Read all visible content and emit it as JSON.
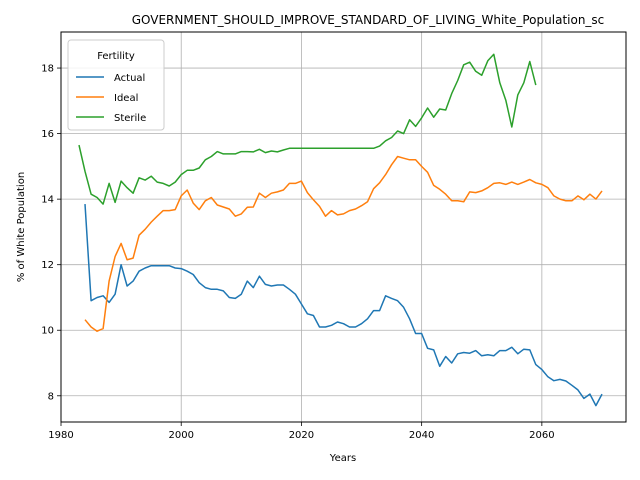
{
  "chart_data": {
    "type": "line",
    "title": "GOVERNMENT_SHOULD_IMPROVE_STANDARD_OF_LIVING_White_Population_sc",
    "xlabel": "Years",
    "ylabel": "% of White Population",
    "xlim": [
      1980,
      2074
    ],
    "ylim": [
      7.2,
      19.1
    ],
    "xticks": [
      1980,
      2000,
      2020,
      2040,
      2060
    ],
    "yticks": [
      8,
      10,
      12,
      14,
      16,
      18
    ],
    "grid": true,
    "legend": {
      "title": "Fertility",
      "placement": "top-left"
    },
    "series": [
      {
        "name": "Actual",
        "color": "#1f77b4",
        "points": [
          [
            1984,
            13.85
          ],
          [
            1985,
            10.9
          ],
          [
            1986,
            11.0
          ],
          [
            1987,
            11.05
          ],
          [
            1988,
            10.85
          ],
          [
            1989,
            11.1
          ],
          [
            1990,
            12.0
          ],
          [
            1991,
            11.35
          ],
          [
            1992,
            11.5
          ],
          [
            1993,
            11.8
          ],
          [
            1994,
            11.9
          ],
          [
            1995,
            11.97
          ],
          [
            1996,
            11.97
          ],
          [
            1997,
            11.97
          ],
          [
            1998,
            11.97
          ],
          [
            1999,
            11.9
          ],
          [
            2000,
            11.88
          ],
          [
            2001,
            11.8
          ],
          [
            2002,
            11.7
          ],
          [
            2003,
            11.45
          ],
          [
            2004,
            11.3
          ],
          [
            2005,
            11.25
          ],
          [
            2006,
            11.25
          ],
          [
            2007,
            11.2
          ],
          [
            2008,
            11.0
          ],
          [
            2009,
            10.97
          ],
          [
            2010,
            11.1
          ],
          [
            2011,
            11.5
          ],
          [
            2012,
            11.3
          ],
          [
            2013,
            11.65
          ],
          [
            2014,
            11.4
          ],
          [
            2015,
            11.35
          ],
          [
            2016,
            11.38
          ],
          [
            2017,
            11.38
          ],
          [
            2018,
            11.25
          ],
          [
            2019,
            11.1
          ],
          [
            2020,
            10.8
          ],
          [
            2021,
            10.5
          ],
          [
            2022,
            10.45
          ],
          [
            2023,
            10.1
          ],
          [
            2024,
            10.1
          ],
          [
            2025,
            10.15
          ],
          [
            2026,
            10.25
          ],
          [
            2027,
            10.2
          ],
          [
            2028,
            10.1
          ],
          [
            2029,
            10.1
          ],
          [
            2030,
            10.2
          ],
          [
            2031,
            10.35
          ],
          [
            2032,
            10.6
          ],
          [
            2033,
            10.6
          ],
          [
            2034,
            11.05
          ],
          [
            2035,
            10.97
          ],
          [
            2036,
            10.9
          ],
          [
            2037,
            10.7
          ],
          [
            2038,
            10.35
          ],
          [
            2039,
            9.9
          ],
          [
            2040,
            9.9
          ],
          [
            2041,
            9.45
          ],
          [
            2042,
            9.4
          ],
          [
            2043,
            8.9
          ],
          [
            2044,
            9.2
          ],
          [
            2045,
            9.0
          ],
          [
            2046,
            9.28
          ],
          [
            2047,
            9.32
          ],
          [
            2048,
            9.3
          ],
          [
            2049,
            9.38
          ],
          [
            2050,
            9.22
          ],
          [
            2051,
            9.25
          ],
          [
            2052,
            9.22
          ],
          [
            2053,
            9.38
          ],
          [
            2054,
            9.38
          ],
          [
            2055,
            9.48
          ],
          [
            2056,
            9.28
          ],
          [
            2057,
            9.42
          ],
          [
            2058,
            9.4
          ],
          [
            2059,
            8.95
          ],
          [
            2060,
            8.8
          ],
          [
            2061,
            8.58
          ],
          [
            2062,
            8.46
          ],
          [
            2063,
            8.5
          ],
          [
            2064,
            8.45
          ],
          [
            2065,
            8.32
          ],
          [
            2066,
            8.18
          ],
          [
            2067,
            7.92
          ],
          [
            2068,
            8.05
          ],
          [
            2069,
            7.7
          ],
          [
            2070,
            8.05
          ]
        ]
      },
      {
        "name": "Ideal",
        "color": "#ff7f0e",
        "points": [
          [
            1984,
            10.32
          ],
          [
            1985,
            10.1
          ],
          [
            1986,
            9.97
          ],
          [
            1987,
            10.05
          ],
          [
            1988,
            11.5
          ],
          [
            1989,
            12.25
          ],
          [
            1990,
            12.65
          ],
          [
            1991,
            12.15
          ],
          [
            1992,
            12.2
          ],
          [
            1993,
            12.9
          ],
          [
            1994,
            13.08
          ],
          [
            1995,
            13.3
          ],
          [
            1996,
            13.48
          ],
          [
            1997,
            13.65
          ],
          [
            1998,
            13.65
          ],
          [
            1999,
            13.68
          ],
          [
            2000,
            14.1
          ],
          [
            2001,
            14.28
          ],
          [
            2002,
            13.88
          ],
          [
            2003,
            13.68
          ],
          [
            2004,
            13.95
          ],
          [
            2005,
            14.05
          ],
          [
            2006,
            13.82
          ],
          [
            2007,
            13.76
          ],
          [
            2008,
            13.7
          ],
          [
            2009,
            13.48
          ],
          [
            2010,
            13.55
          ],
          [
            2011,
            13.75
          ],
          [
            2012,
            13.76
          ],
          [
            2013,
            14.18
          ],
          [
            2014,
            14.05
          ],
          [
            2015,
            14.18
          ],
          [
            2016,
            14.22
          ],
          [
            2017,
            14.28
          ],
          [
            2018,
            14.48
          ],
          [
            2019,
            14.48
          ],
          [
            2020,
            14.55
          ],
          [
            2021,
            14.2
          ],
          [
            2022,
            13.98
          ],
          [
            2023,
            13.78
          ],
          [
            2024,
            13.48
          ],
          [
            2025,
            13.65
          ],
          [
            2026,
            13.52
          ],
          [
            2027,
            13.55
          ],
          [
            2028,
            13.65
          ],
          [
            2029,
            13.7
          ],
          [
            2030,
            13.8
          ],
          [
            2031,
            13.92
          ],
          [
            2032,
            14.32
          ],
          [
            2033,
            14.5
          ],
          [
            2034,
            14.75
          ],
          [
            2035,
            15.05
          ],
          [
            2036,
            15.3
          ],
          [
            2037,
            15.25
          ],
          [
            2038,
            15.2
          ],
          [
            2039,
            15.2
          ],
          [
            2040,
            15.0
          ],
          [
            2041,
            14.82
          ],
          [
            2042,
            14.42
          ],
          [
            2043,
            14.3
          ],
          [
            2044,
            14.15
          ],
          [
            2045,
            13.95
          ],
          [
            2046,
            13.95
          ],
          [
            2047,
            13.92
          ],
          [
            2048,
            14.22
          ],
          [
            2049,
            14.2
          ],
          [
            2050,
            14.25
          ],
          [
            2051,
            14.35
          ],
          [
            2052,
            14.48
          ],
          [
            2053,
            14.5
          ],
          [
            2054,
            14.45
          ],
          [
            2055,
            14.52
          ],
          [
            2056,
            14.45
          ],
          [
            2057,
            14.52
          ],
          [
            2058,
            14.6
          ],
          [
            2059,
            14.5
          ],
          [
            2060,
            14.45
          ],
          [
            2061,
            14.35
          ],
          [
            2062,
            14.1
          ],
          [
            2063,
            14.0
          ],
          [
            2064,
            13.95
          ],
          [
            2065,
            13.95
          ],
          [
            2066,
            14.1
          ],
          [
            2067,
            13.98
          ],
          [
            2068,
            14.15
          ],
          [
            2069,
            14.0
          ],
          [
            2070,
            14.25
          ]
        ]
      },
      {
        "name": "Sterile",
        "color": "#2ca02c",
        "points": [
          [
            1983,
            15.65
          ],
          [
            1984,
            14.85
          ],
          [
            1985,
            14.15
          ],
          [
            1986,
            14.05
          ],
          [
            1987,
            13.85
          ],
          [
            1988,
            14.48
          ],
          [
            1989,
            13.9
          ],
          [
            1990,
            14.55
          ],
          [
            1991,
            14.35
          ],
          [
            1992,
            14.18
          ],
          [
            1993,
            14.65
          ],
          [
            1994,
            14.58
          ],
          [
            1995,
            14.7
          ],
          [
            1996,
            14.52
          ],
          [
            1997,
            14.48
          ],
          [
            1998,
            14.4
          ],
          [
            1999,
            14.52
          ],
          [
            2000,
            14.75
          ],
          [
            2001,
            14.88
          ],
          [
            2002,
            14.88
          ],
          [
            2003,
            14.95
          ],
          [
            2004,
            15.2
          ],
          [
            2005,
            15.3
          ],
          [
            2006,
            15.45
          ],
          [
            2007,
            15.38
          ],
          [
            2008,
            15.38
          ],
          [
            2009,
            15.38
          ],
          [
            2010,
            15.45
          ],
          [
            2011,
            15.45
          ],
          [
            2012,
            15.44
          ],
          [
            2013,
            15.52
          ],
          [
            2014,
            15.42
          ],
          [
            2015,
            15.47
          ],
          [
            2016,
            15.44
          ],
          [
            2017,
            15.5
          ],
          [
            2018,
            15.55
          ],
          [
            2019,
            15.55
          ],
          [
            2020,
            15.55
          ],
          [
            2021,
            15.55
          ],
          [
            2022,
            15.55
          ],
          [
            2023,
            15.55
          ],
          [
            2024,
            15.55
          ],
          [
            2025,
            15.55
          ],
          [
            2026,
            15.55
          ],
          [
            2027,
            15.55
          ],
          [
            2028,
            15.55
          ],
          [
            2029,
            15.55
          ],
          [
            2030,
            15.55
          ],
          [
            2031,
            15.55
          ],
          [
            2032,
            15.55
          ],
          [
            2033,
            15.62
          ],
          [
            2034,
            15.78
          ],
          [
            2035,
            15.88
          ],
          [
            2036,
            16.08
          ],
          [
            2037,
            16.0
          ],
          [
            2038,
            16.42
          ],
          [
            2039,
            16.22
          ],
          [
            2040,
            16.48
          ],
          [
            2041,
            16.78
          ],
          [
            2042,
            16.5
          ],
          [
            2043,
            16.75
          ],
          [
            2044,
            16.72
          ],
          [
            2045,
            17.22
          ],
          [
            2046,
            17.62
          ],
          [
            2047,
            18.1
          ],
          [
            2048,
            18.18
          ],
          [
            2049,
            17.9
          ],
          [
            2050,
            17.78
          ],
          [
            2051,
            18.22
          ],
          [
            2052,
            18.42
          ],
          [
            2053,
            17.55
          ],
          [
            2054,
            17.02
          ],
          [
            2055,
            16.2
          ],
          [
            2056,
            17.18
          ],
          [
            2057,
            17.55
          ],
          [
            2058,
            18.2
          ],
          [
            2059,
            17.48
          ]
        ]
      }
    ]
  }
}
